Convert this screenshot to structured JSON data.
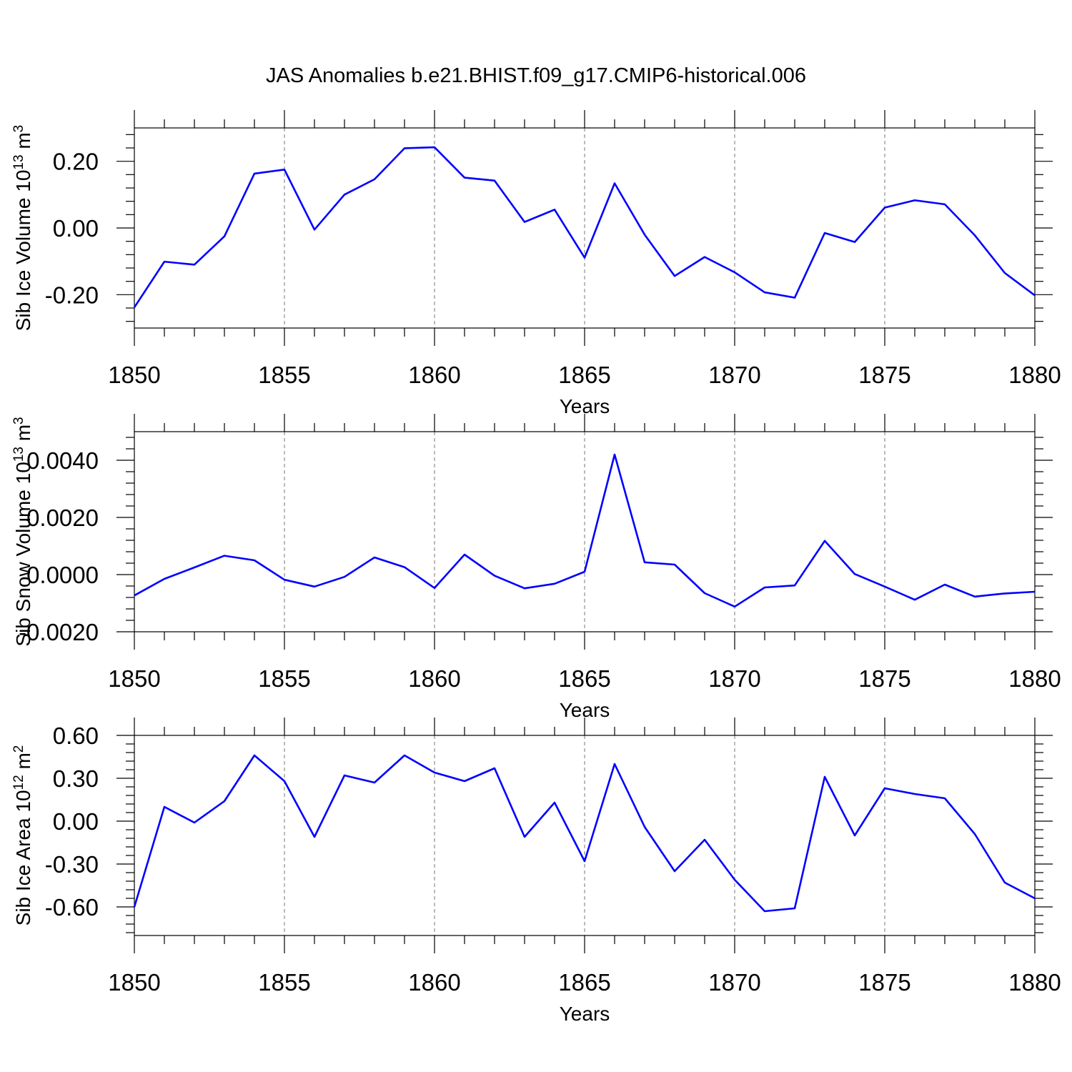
{
  "figure_title": "JAS Anomalies b.e21.BHIST.f09_g17.CMIP6-historical.006",
  "colors": {
    "line": "#0000ff",
    "axis": "#000000",
    "grid": "#777777"
  },
  "chart_data": [
    {
      "type": "line",
      "title": "",
      "xlabel": "Years",
      "ylabel": {
        "prefix": "Sib Ice Volume 10",
        "exp": "13",
        "unit": " m",
        "unit_exp": "3"
      },
      "xlim": [
        1850,
        1880
      ],
      "ylim": [
        -0.3,
        0.3
      ],
      "xticks": [
        1850,
        1855,
        1860,
        1865,
        1870,
        1875,
        1880
      ],
      "xtick_labels": [
        "1850",
        "1855",
        "1860",
        "1865",
        "1870",
        "1875",
        "1880"
      ],
      "yticks": [
        -0.2,
        0.0,
        0.2
      ],
      "ytick_labels": [
        "-0.20",
        "0.00",
        "0.20"
      ],
      "grid": "vertical dashed at major x ticks",
      "series": [
        {
          "name": "Sib Ice Volume anomaly",
          "x": [
            1850,
            1851,
            1852,
            1853,
            1854,
            1855,
            1856,
            1857,
            1858,
            1859,
            1860,
            1861,
            1862,
            1863,
            1864,
            1865,
            1866,
            1867,
            1868,
            1869,
            1870,
            1871,
            1872,
            1873,
            1874,
            1875,
            1876,
            1877,
            1878,
            1879,
            1880
          ],
          "values": [
            -0.238,
            -0.101,
            -0.11,
            -0.025,
            0.163,
            0.175,
            -0.005,
            0.1,
            0.146,
            0.239,
            0.242,
            0.151,
            0.142,
            0.018,
            0.055,
            -0.089,
            0.134,
            -0.02,
            -0.144,
            -0.087,
            -0.133,
            -0.193,
            -0.209,
            -0.015,
            -0.042,
            0.061,
            0.083,
            0.071,
            -0.022,
            -0.135,
            -0.202
          ]
        }
      ]
    },
    {
      "type": "line",
      "title": "",
      "xlabel": "Years",
      "ylabel": {
        "prefix": "Sib Snow Volume 10",
        "exp": "13",
        "unit": " m",
        "unit_exp": "3"
      },
      "xlim": [
        1850,
        1880
      ],
      "ylim": [
        -0.002,
        0.005
      ],
      "xticks": [
        1850,
        1855,
        1860,
        1865,
        1870,
        1875,
        1880
      ],
      "xtick_labels": [
        "1850",
        "1855",
        "1860",
        "1865",
        "1870",
        "1875",
        "1880"
      ],
      "yticks": [
        -0.002,
        0.0,
        0.002,
        0.004
      ],
      "ytick_labels": [
        "-0.0020",
        "0.0000",
        "0.0020",
        "0.0040"
      ],
      "grid": "vertical dashed at major x ticks",
      "series": [
        {
          "name": "Sib Snow Volume anomaly",
          "x": [
            1850,
            1851,
            1852,
            1853,
            1854,
            1855,
            1856,
            1857,
            1858,
            1859,
            1860,
            1861,
            1862,
            1863,
            1864,
            1865,
            1866,
            1867,
            1868,
            1869,
            1870,
            1871,
            1872,
            1873,
            1874,
            1875,
            1876,
            1877,
            1878,
            1879,
            1880
          ],
          "values": [
            -0.00073,
            -0.00015,
            0.00025,
            0.00066,
            0.0005,
            -0.00018,
            -0.00042,
            -8e-05,
            0.0006,
            0.00026,
            -0.00047,
            0.0007,
            -4e-05,
            -0.00048,
            -0.00032,
            0.0001,
            0.0042,
            0.00043,
            0.00035,
            -0.00065,
            -0.00112,
            -0.00045,
            -0.00038,
            0.00118,
            2e-05,
            -0.00042,
            -0.00088,
            -0.00035,
            -0.00077,
            -0.00066,
            -0.0006
          ]
        }
      ]
    },
    {
      "type": "line",
      "title": "",
      "xlabel": "Years",
      "ylabel": {
        "prefix": "Sib Ice Area 10",
        "exp": "12",
        "unit": " m",
        "unit_exp": "2"
      },
      "xlim": [
        1850,
        1880
      ],
      "ylim": [
        -0.8,
        0.6
      ],
      "xticks": [
        1850,
        1855,
        1860,
        1865,
        1870,
        1875,
        1880
      ],
      "xtick_labels": [
        "1850",
        "1855",
        "1860",
        "1865",
        "1870",
        "1875",
        "1880"
      ],
      "yticks": [
        -0.6,
        -0.3,
        0.0,
        0.3,
        0.6
      ],
      "ytick_labels": [
        "-0.60",
        "-0.30",
        "0.00",
        "0.30",
        "0.60"
      ],
      "grid": "vertical dashed at major x ticks",
      "series": [
        {
          "name": "Sib Ice Area anomaly",
          "x": [
            1850,
            1851,
            1852,
            1853,
            1854,
            1855,
            1856,
            1857,
            1858,
            1859,
            1860,
            1861,
            1862,
            1863,
            1864,
            1865,
            1866,
            1867,
            1868,
            1869,
            1870,
            1871,
            1872,
            1873,
            1874,
            1875,
            1876,
            1877,
            1878,
            1879,
            1880
          ],
          "values": [
            -0.6,
            0.1,
            -0.01,
            0.14,
            0.46,
            0.28,
            -0.11,
            0.32,
            0.27,
            0.46,
            0.34,
            0.28,
            0.37,
            -0.11,
            0.13,
            -0.28,
            0.4,
            -0.04,
            -0.35,
            -0.13,
            -0.41,
            -0.63,
            -0.61,
            0.31,
            -0.1,
            0.23,
            0.19,
            0.16,
            -0.09,
            -0.43,
            -0.54
          ]
        }
      ]
    }
  ]
}
